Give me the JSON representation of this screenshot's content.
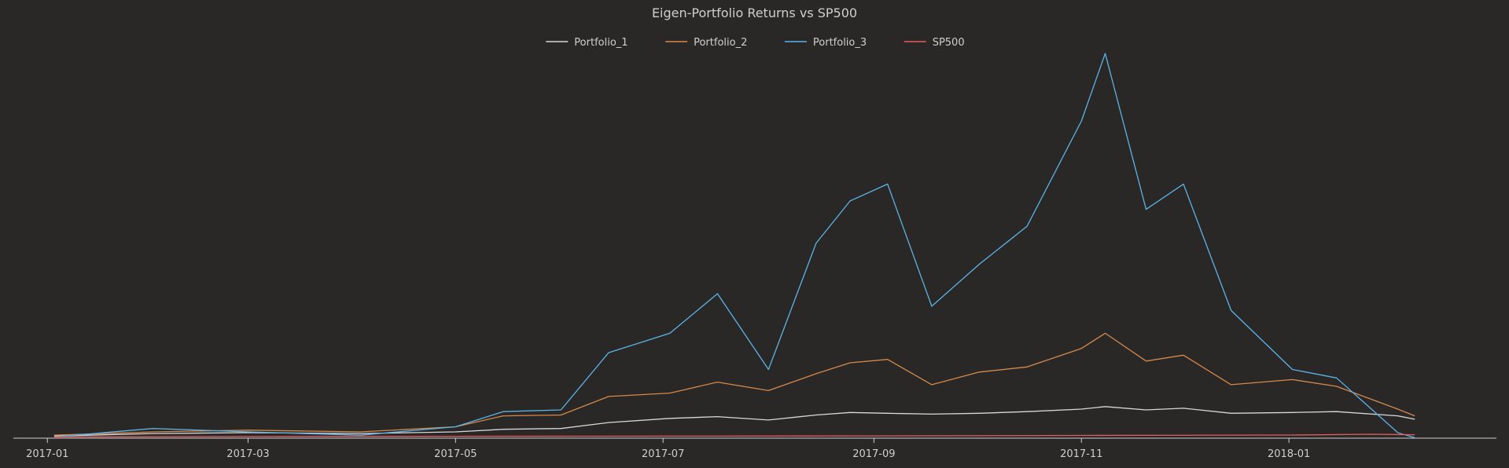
{
  "chart_data": {
    "type": "line",
    "title": "Eigen-Portfolio Returns vs SP500",
    "xlabel": "",
    "ylabel": "",
    "x_type": "date",
    "xlim": [
      "2016-12-22",
      "2018-03-03"
    ],
    "ylim": [
      0.85,
      48
    ],
    "legend_position": "top-center",
    "grid": false,
    "x_ticks": [
      "2017-01",
      "2017-03",
      "2017-05",
      "2017-07",
      "2017-09",
      "2017-11",
      "2018-01"
    ],
    "y_ticks_visible": false,
    "series": [
      {
        "name": "Portfolio_1",
        "color": "#d8d8d8",
        "points": [
          [
            "2017-01-03",
            1.1
          ],
          [
            "2017-02-01",
            1.4
          ],
          [
            "2017-03-01",
            1.5
          ],
          [
            "2017-04-03",
            1.4
          ],
          [
            "2017-05-01",
            1.6
          ],
          [
            "2017-05-15",
            1.9
          ],
          [
            "2017-06-01",
            2.0
          ],
          [
            "2017-06-15",
            2.7
          ],
          [
            "2017-07-03",
            3.2
          ],
          [
            "2017-07-17",
            3.4
          ],
          [
            "2017-08-01",
            3.0
          ],
          [
            "2017-08-15",
            3.6
          ],
          [
            "2017-08-25",
            3.9
          ],
          [
            "2017-09-05",
            3.8
          ],
          [
            "2017-09-18",
            3.7
          ],
          [
            "2017-10-02",
            3.8
          ],
          [
            "2017-10-16",
            4.0
          ],
          [
            "2017-11-01",
            4.3
          ],
          [
            "2017-11-08",
            4.6
          ],
          [
            "2017-11-20",
            4.2
          ],
          [
            "2017-12-01",
            4.4
          ],
          [
            "2017-12-15",
            3.8
          ],
          [
            "2018-01-02",
            3.9
          ],
          [
            "2018-01-15",
            4.0
          ],
          [
            "2018-02-02",
            3.5
          ],
          [
            "2018-02-07",
            3.1
          ]
        ]
      },
      {
        "name": "Portfolio_2",
        "color": "#d48a4a",
        "points": [
          [
            "2017-01-03",
            1.2
          ],
          [
            "2017-02-01",
            1.6
          ],
          [
            "2017-03-01",
            1.8
          ],
          [
            "2017-04-03",
            1.6
          ],
          [
            "2017-05-01",
            2.2
          ],
          [
            "2017-05-15",
            3.5
          ],
          [
            "2017-06-01",
            3.6
          ],
          [
            "2017-06-15",
            5.8
          ],
          [
            "2017-07-03",
            6.2
          ],
          [
            "2017-07-17",
            7.5
          ],
          [
            "2017-08-01",
            6.5
          ],
          [
            "2017-08-15",
            8.5
          ],
          [
            "2017-08-25",
            9.8
          ],
          [
            "2017-09-05",
            10.2
          ],
          [
            "2017-09-18",
            7.2
          ],
          [
            "2017-10-02",
            8.7
          ],
          [
            "2017-10-16",
            9.3
          ],
          [
            "2017-11-01",
            11.5
          ],
          [
            "2017-11-08",
            13.3
          ],
          [
            "2017-11-20",
            10.0
          ],
          [
            "2017-12-01",
            10.7
          ],
          [
            "2017-12-15",
            7.2
          ],
          [
            "2018-01-02",
            7.8
          ],
          [
            "2018-01-15",
            7.0
          ],
          [
            "2018-02-02",
            4.3
          ],
          [
            "2018-02-07",
            3.5
          ]
        ]
      },
      {
        "name": "Portfolio_3",
        "color": "#5ab4e6",
        "points": [
          [
            "2017-01-03",
            1.0
          ],
          [
            "2017-02-01",
            2.0
          ],
          [
            "2017-03-01",
            1.6
          ],
          [
            "2017-04-03",
            1.2
          ],
          [
            "2017-05-01",
            2.2
          ],
          [
            "2017-05-15",
            4.0
          ],
          [
            "2017-06-01",
            4.2
          ],
          [
            "2017-06-15",
            11.0
          ],
          [
            "2017-07-03",
            13.3
          ],
          [
            "2017-07-17",
            18.0
          ],
          [
            "2017-08-01",
            9.0
          ],
          [
            "2017-08-15",
            24.0
          ],
          [
            "2017-08-25",
            29.0
          ],
          [
            "2017-09-05",
            31.0
          ],
          [
            "2017-09-18",
            16.5
          ],
          [
            "2017-10-02",
            21.5
          ],
          [
            "2017-10-16",
            26.0
          ],
          [
            "2017-11-01",
            38.5
          ],
          [
            "2017-11-08",
            46.5
          ],
          [
            "2017-11-20",
            28.0
          ],
          [
            "2017-12-01",
            31.0
          ],
          [
            "2017-12-15",
            16.0
          ],
          [
            "2018-01-02",
            9.0
          ],
          [
            "2018-01-15",
            8.0
          ],
          [
            "2018-02-02",
            1.5
          ],
          [
            "2018-02-07",
            0.9
          ]
        ]
      },
      {
        "name": "SP500",
        "color": "#e35d62",
        "points": [
          [
            "2017-01-03",
            1.0
          ],
          [
            "2017-03-01",
            1.05
          ],
          [
            "2017-05-01",
            1.07
          ],
          [
            "2017-07-03",
            1.09
          ],
          [
            "2017-09-01",
            1.12
          ],
          [
            "2017-11-01",
            1.18
          ],
          [
            "2018-01-02",
            1.22
          ],
          [
            "2018-01-26",
            1.32
          ],
          [
            "2018-02-07",
            1.25
          ]
        ]
      }
    ]
  }
}
